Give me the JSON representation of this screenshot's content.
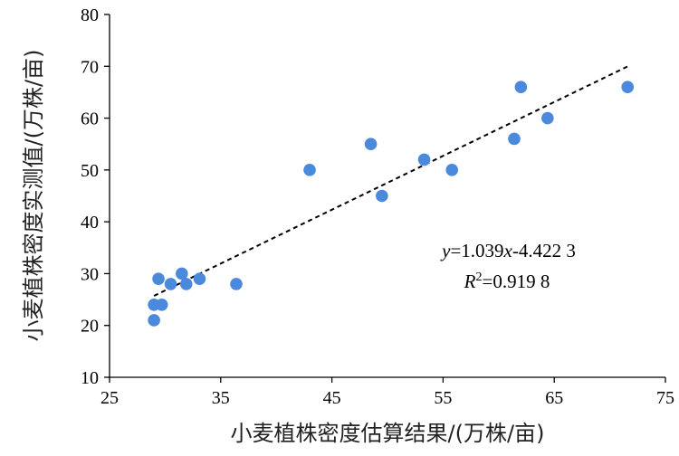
{
  "chart_data": {
    "type": "scatter",
    "xlabel": "小麦植株密度估算结果/(万株/亩)",
    "ylabel": "小麦植株密度实测值/(万株/亩)",
    "xlim": [
      25,
      75
    ],
    "ylim": [
      10,
      80
    ],
    "x_ticks": [
      "25",
      "35",
      "45",
      "55",
      "65",
      "75"
    ],
    "y_ticks": [
      "10",
      "20",
      "30",
      "40",
      "50",
      "60",
      "70",
      "80"
    ],
    "grid": false,
    "point_color": "#4a89dc",
    "series": [
      {
        "points": [
          {
            "x": 29.0,
            "y": 21
          },
          {
            "x": 29.0,
            "y": 24
          },
          {
            "x": 29.7,
            "y": 24
          },
          {
            "x": 29.4,
            "y": 29
          },
          {
            "x": 30.5,
            "y": 28
          },
          {
            "x": 31.5,
            "y": 30
          },
          {
            "x": 31.9,
            "y": 28
          },
          {
            "x": 33.1,
            "y": 29
          },
          {
            "x": 36.4,
            "y": 28
          },
          {
            "x": 43.0,
            "y": 50
          },
          {
            "x": 48.5,
            "y": 55
          },
          {
            "x": 49.5,
            "y": 45
          },
          {
            "x": 53.3,
            "y": 52
          },
          {
            "x": 55.8,
            "y": 50
          },
          {
            "x": 61.4,
            "y": 56
          },
          {
            "x": 62.0,
            "y": 66
          },
          {
            "x": 64.4,
            "y": 60
          },
          {
            "x": 71.6,
            "y": 66
          }
        ]
      }
    ],
    "trendline": {
      "style": "dashed",
      "slope": 1.039,
      "intercept": -4.4223,
      "x_range": [
        29.0,
        71.6
      ]
    },
    "annotations": {
      "equation": "y=1.039x-4.422 3",
      "r2": "R²=0.919 8"
    }
  }
}
